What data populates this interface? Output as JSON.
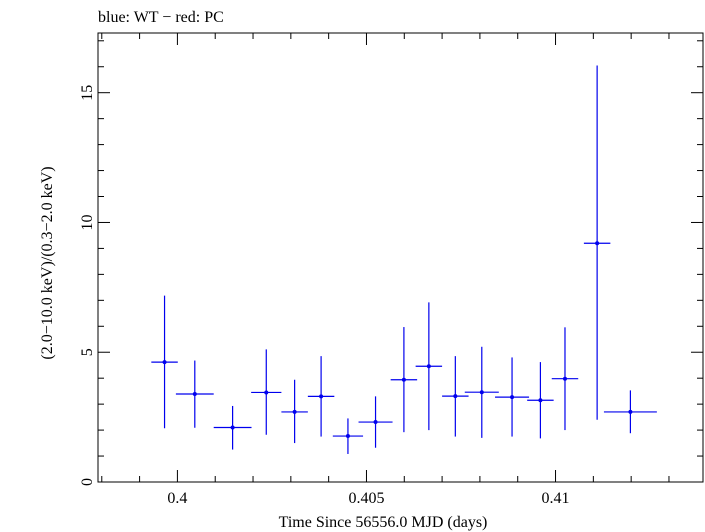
{
  "chart_data": {
    "type": "scatter",
    "title": "blue: WT − red: PC",
    "xlabel": "Time Since 56556.0 MJD (days)",
    "ylabel": "(2.0−10.0 keV)/(0.3−2.0 keV)",
    "xlim": [
      0.3979,
      0.4139
    ],
    "ylim": [
      0,
      17.3
    ],
    "x_ticks": [
      {
        "value": 0.4,
        "label": "0.4"
      },
      {
        "value": 0.405,
        "label": "0.405"
      },
      {
        "value": 0.41,
        "label": "0.41"
      }
    ],
    "y_ticks": [
      {
        "value": 0,
        "label": "0"
      },
      {
        "value": 5,
        "label": "5"
      },
      {
        "value": 10,
        "label": "10"
      },
      {
        "value": 15,
        "label": "15"
      }
    ],
    "x_minor_step": 0.001,
    "y_minor_step": 1,
    "grid": false,
    "series": [
      {
        "color": "#0000ee",
        "points": [
          {
            "x": 0.39966,
            "xerr": 0.00035,
            "y": 4.62,
            "ylo": 2.07,
            "yhi": 7.18
          },
          {
            "x": 0.40046,
            "xerr": 0.0005,
            "y": 3.39,
            "ylo": 2.09,
            "yhi": 4.68
          },
          {
            "x": 0.40146,
            "xerr": 0.0005,
            "y": 2.1,
            "ylo": 1.25,
            "yhi": 2.93
          },
          {
            "x": 0.40235,
            "xerr": 0.0004,
            "y": 3.45,
            "ylo": 1.82,
            "yhi": 5.11
          },
          {
            "x": 0.4031,
            "xerr": 0.00035,
            "y": 2.7,
            "ylo": 1.5,
            "yhi": 3.94
          },
          {
            "x": 0.4038,
            "xerr": 0.00035,
            "y": 3.3,
            "ylo": 1.75,
            "yhi": 4.85
          },
          {
            "x": 0.40451,
            "xerr": 0.0004,
            "y": 1.77,
            "ylo": 1.08,
            "yhi": 2.45
          },
          {
            "x": 0.40524,
            "xerr": 0.00045,
            "y": 2.31,
            "ylo": 1.32,
            "yhi": 3.3
          },
          {
            "x": 0.40599,
            "xerr": 0.00035,
            "y": 3.94,
            "ylo": 1.92,
            "yhi": 5.97
          },
          {
            "x": 0.40665,
            "xerr": 0.00035,
            "y": 4.46,
            "ylo": 2.0,
            "yhi": 6.92
          },
          {
            "x": 0.40735,
            "xerr": 0.00035,
            "y": 3.31,
            "ylo": 1.75,
            "yhi": 4.85
          },
          {
            "x": 0.40805,
            "xerr": 0.00045,
            "y": 3.46,
            "ylo": 1.7,
            "yhi": 5.21
          },
          {
            "x": 0.40885,
            "xerr": 0.00045,
            "y": 3.27,
            "ylo": 1.75,
            "yhi": 4.8
          },
          {
            "x": 0.4096,
            "xerr": 0.00035,
            "y": 3.15,
            "ylo": 1.68,
            "yhi": 4.62
          },
          {
            "x": 0.41025,
            "xerr": 0.00035,
            "y": 3.98,
            "ylo": 2.0,
            "yhi": 5.96
          },
          {
            "x": 0.4111,
            "xerr": 0.00035,
            "y": 9.2,
            "ylo": 2.4,
            "yhi": 16.05
          },
          {
            "x": 0.41198,
            "xerr": 0.0007,
            "y": 2.7,
            "ylo": 1.88,
            "yhi": 3.53
          }
        ]
      }
    ]
  }
}
